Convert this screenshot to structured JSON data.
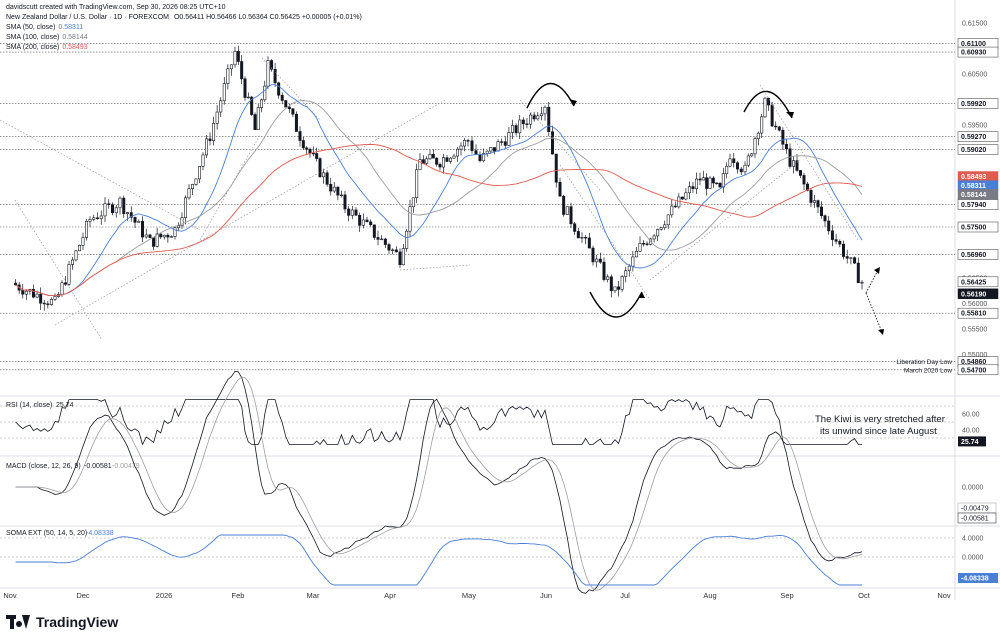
{
  "header": {
    "credit": "davidscutt created with TradingView.com, Sep 30, 2026 08:25 UTC+10",
    "symbol_line": "New Zealand Dollar / U.S. Dollar · 1D · FOREXCOM",
    "ohlc": "O0.56411 H0.56466 L0.56364 C0.56425 +0.00005 (+0.01%)",
    "sma50_label": "SMA (50, close)",
    "sma50_value": "0.58311",
    "sma100_label": "SMA (100, close)",
    "sma100_value": "0.58144",
    "sma200_label": "SMA (200, close)",
    "sma200_value": "0.58493"
  },
  "colors": {
    "up": "#131722",
    "down": "#131722",
    "sma50": "#4a7fd6",
    "sma100": "#9e9e9e",
    "sma200": "#e05a4f",
    "dotted": "#9598a1",
    "annotation": "#000000",
    "soma": "#4a7fd6"
  },
  "price_axis_ticks": [
    "0.61500",
    "0.60500",
    "0.59500",
    "0.58500",
    "0.57500",
    "0.56500",
    "0.56000",
    "0.55500",
    "0.55000"
  ],
  "levels": [
    {
      "value": 0.611,
      "label": "0.61100"
    },
    {
      "value": 0.6093,
      "label": "0.60930"
    },
    {
      "value": 0.5992,
      "label": "0.59920"
    },
    {
      "value": 0.5927,
      "label": "0.59270"
    },
    {
      "value": 0.5902,
      "label": "0.59020"
    },
    {
      "value": 0.5794,
      "label": "0.57940"
    },
    {
      "value": 0.575,
      "label": "0.57500"
    },
    {
      "value": 0.5696,
      "label": "0.56960"
    },
    {
      "value": 0.5581,
      "label": "0.55810"
    },
    {
      "value": 0.5486,
      "label": "0.54860",
      "note": "Liberation Day Low"
    },
    {
      "value": 0.547,
      "label": "0.54700",
      "note": "March 2020 Low"
    }
  ],
  "price_tags": [
    {
      "value": 0.5849,
      "label": "0.58493",
      "color": "#e05a4f"
    },
    {
      "value": 0.5831,
      "label": "0.58311",
      "color": "#4a7fd6"
    },
    {
      "value": 0.5814,
      "label": "0.58144",
      "color": "#787b86"
    },
    {
      "value": 0.56425,
      "label": "0.56425",
      "color": "#ffffff"
    },
    {
      "value": 0.5619,
      "label": "0.56190",
      "color": "#131722"
    }
  ],
  "x_axis": [
    "Nov",
    "Dec",
    "2026",
    "Feb",
    "Mar",
    "Apr",
    "May",
    "Jun",
    "Jul",
    "Aug",
    "Sep",
    "Oct",
    "Nov"
  ],
  "annotation": "The Kiwi is very stretched after its unwind since late August",
  "rsi": {
    "label": "RSI (14, close)",
    "value": "25.74",
    "ticks": [
      "60.00",
      "40.00"
    ]
  },
  "macd": {
    "label": "MACD (close, 12, 26, 9)",
    "value1": "-0.00581",
    "value2": "-0.00479",
    "tick": "0.0000"
  },
  "soma": {
    "label": "SOMA EXT (50, 14, 5, 20)",
    "value": "-4.08338",
    "ticks": [
      "4.0000",
      "0.0000"
    ]
  },
  "footer": {
    "brand": "TradingView"
  },
  "chart_data": {
    "type": "candlestick",
    "title": "New Zealand Dollar / U.S. Dollar · 1D · FOREXCOM",
    "last_close": 0.56425,
    "waypoints": [
      {
        "date": "Nov",
        "price": 0.564
      },
      {
        "date": "late Nov",
        "price": 0.56
      },
      {
        "date": "Dec",
        "price": 0.5765
      },
      {
        "date": "mid Dec",
        "price": 0.58
      },
      {
        "date": "late Dec",
        "price": 0.572
      },
      {
        "date": "Jan",
        "price": 0.5745
      },
      {
        "date": "mid Jan",
        "price": 0.593
      },
      {
        "date": "late Jan",
        "price": 0.6093
      },
      {
        "date": "early Feb",
        "price": 0.594
      },
      {
        "date": "mid Feb",
        "price": 0.6065
      },
      {
        "date": "late Feb",
        "price": 0.593
      },
      {
        "date": "Mar",
        "price": 0.586
      },
      {
        "date": "mid Mar",
        "price": 0.579
      },
      {
        "date": "early Apr",
        "price": 0.569
      },
      {
        "date": "mid Apr",
        "price": 0.588
      },
      {
        "date": "late Apr",
        "price": 0.588
      },
      {
        "date": "May",
        "price": 0.592
      },
      {
        "date": "mid May",
        "price": 0.588
      },
      {
        "date": "late May",
        "price": 0.5992
      },
      {
        "date": "early Jun",
        "price": 0.58
      },
      {
        "date": "late Jun",
        "price": 0.562
      },
      {
        "date": "early Jul",
        "price": 0.571
      },
      {
        "date": "mid Jul",
        "price": 0.5845
      },
      {
        "date": "late Jul",
        "price": 0.582
      },
      {
        "date": "Aug",
        "price": 0.5895
      },
      {
        "date": "mid Aug",
        "price": 0.586
      },
      {
        "date": "late Aug",
        "price": 0.5992
      },
      {
        "date": "Sep",
        "price": 0.588
      },
      {
        "date": "mid Sep",
        "price": 0.576
      },
      {
        "date": "late Sep",
        "price": 0.56425
      }
    ]
  }
}
